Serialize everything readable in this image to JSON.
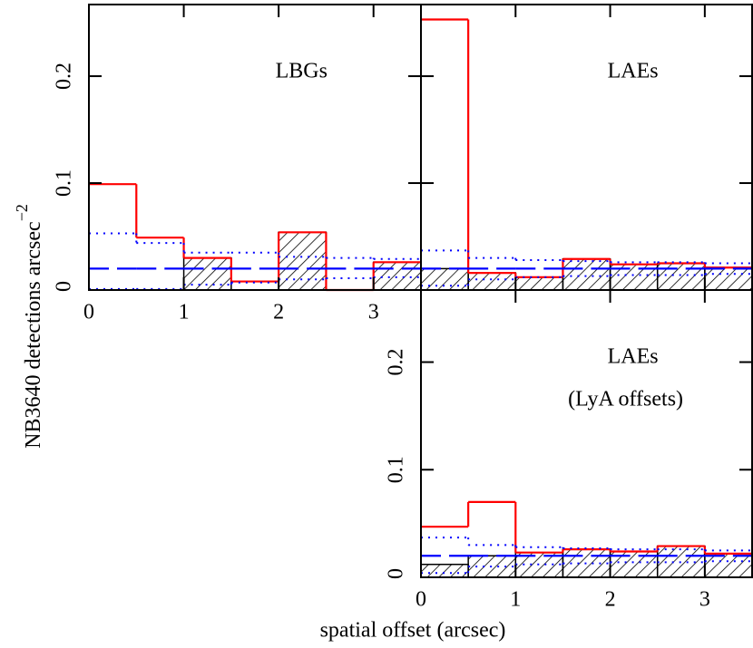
{
  "chart_data": [
    {
      "type": "histogram",
      "annotations": [
        "LBGs"
      ],
      "ylabel": "NB3640 detections arcsec",
      "ylabel_exponent": "−2",
      "bins": [
        0,
        0.5,
        1,
        1.5,
        2,
        2.5,
        3,
        3.5
      ],
      "xlim": [
        0,
        3.5
      ],
      "ylim": [
        0,
        0.267
      ],
      "xticks": [
        0,
        1,
        2,
        3
      ],
      "yticks": [
        0,
        0.1,
        0.2
      ],
      "show_xtick_labels": true,
      "show_ytick_labels": true,
      "series": [
        {
          "style": "hatched",
          "color": "#000000",
          "values": [
            0,
            0,
            0.03,
            0,
            0.054,
            0,
            0.026
          ]
        },
        {
          "style": "solid",
          "color": "#ff0000",
          "values": [
            0.099,
            0.049,
            0.03,
            0.008,
            0.054,
            0,
            0.026
          ]
        },
        {
          "style": "dashed",
          "color": "#0000ff",
          "values": [
            0.02,
            0.02,
            0.02,
            0.02,
            0.02,
            0.02,
            0.02
          ]
        },
        {
          "style": "dotted",
          "color": "#0000ff",
          "values": [
            0.053,
            0.044,
            0.035,
            0.035,
            0.031,
            0.03,
            0.029
          ]
        },
        {
          "style": "dotted",
          "color": "#0000ff",
          "values": [
            0.001,
            0.001,
            0.005,
            0.007,
            0.01,
            0.011,
            0.012
          ]
        }
      ]
    },
    {
      "type": "histogram",
      "annotations": [
        "LAEs"
      ],
      "bins": [
        0,
        0.5,
        1,
        1.5,
        2,
        2.5,
        3,
        3.5
      ],
      "xlim": [
        0,
        3.5
      ],
      "ylim": [
        0,
        0.267
      ],
      "xticks": [
        0,
        1,
        2,
        3
      ],
      "yticks": [
        0,
        0.1,
        0.2
      ],
      "show_xtick_labels": false,
      "show_ytick_labels": false,
      "series": [
        {
          "style": "hatched",
          "color": "#000000",
          "values": [
            0.02,
            0.016,
            0.012,
            0.029,
            0.024,
            0.025,
            0.021
          ]
        },
        {
          "style": "solid",
          "color": "#ff0000",
          "values": [
            0.253,
            0.016,
            0.012,
            0.029,
            0.024,
            0.025,
            0.021
          ]
        },
        {
          "style": "dashed",
          "color": "#0000ff",
          "values": [
            0.02,
            0.02,
            0.02,
            0.02,
            0.02,
            0.02,
            0.02
          ]
        },
        {
          "style": "dotted",
          "color": "#0000ff",
          "values": [
            0.037,
            0.03,
            0.028,
            0.027,
            0.026,
            0.026,
            0.025
          ]
        },
        {
          "style": "dotted",
          "color": "#0000ff",
          "values": [
            0.004,
            0.01,
            0.012,
            0.013,
            0.014,
            0.014,
            0.015
          ]
        }
      ]
    },
    {
      "type": "histogram",
      "annotations": [
        "LAEs",
        "(LyA offsets)"
      ],
      "xlabel": "spatial offset (arcsec)",
      "bins": [
        0,
        0.5,
        1,
        1.5,
        2,
        2.5,
        3,
        3.5
      ],
      "xlim": [
        0,
        3.5
      ],
      "ylim": [
        0,
        0.267
      ],
      "xticks": [
        0,
        1,
        2,
        3
      ],
      "yticks": [
        0,
        0.1,
        0.2
      ],
      "show_xtick_labels": true,
      "show_ytick_labels": true,
      "series": [
        {
          "style": "hatched",
          "color": "#000000",
          "values": [
            0.012,
            0.02,
            0.023,
            0.026,
            0.024,
            0.029,
            0.022
          ]
        },
        {
          "style": "solid",
          "color": "#ff0000",
          "values": [
            0.047,
            0.07,
            0.023,
            0.026,
            0.024,
            0.029,
            0.022
          ]
        },
        {
          "style": "dashed",
          "color": "#0000ff",
          "values": [
            0.02,
            0.02,
            0.02,
            0.02,
            0.02,
            0.02,
            0.02
          ]
        },
        {
          "style": "dotted",
          "color": "#0000ff",
          "values": [
            0.037,
            0.03,
            0.028,
            0.027,
            0.026,
            0.026,
            0.025
          ]
        },
        {
          "style": "dotted",
          "color": "#0000ff",
          "values": [
            0.004,
            0.01,
            0.012,
            0.013,
            0.014,
            0.014,
            0.015
          ]
        }
      ]
    }
  ]
}
